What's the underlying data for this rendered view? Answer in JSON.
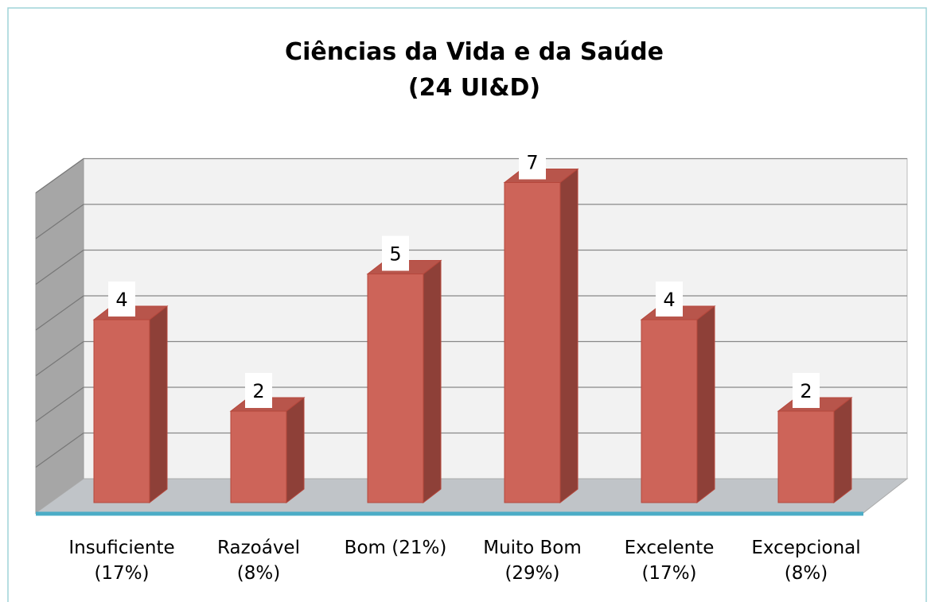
{
  "chart_data": {
    "type": "bar3d",
    "title": "Ciências da Vida e da Saúde",
    "subtitle": "(24 UI&D)",
    "categories": [
      "Insuficiente (17%)",
      "Razoável (8%)",
      "Bom (21%)",
      "Muito Bom (29%)",
      "Excelente (17%)",
      "Excepcional (8%)"
    ],
    "values": [
      4,
      2,
      5,
      7,
      4,
      2
    ],
    "color": "#cd6459",
    "ylim": [
      0,
      7
    ],
    "yticks": [
      0,
      1,
      2,
      3,
      4,
      5,
      6,
      7
    ],
    "grid": true
  }
}
